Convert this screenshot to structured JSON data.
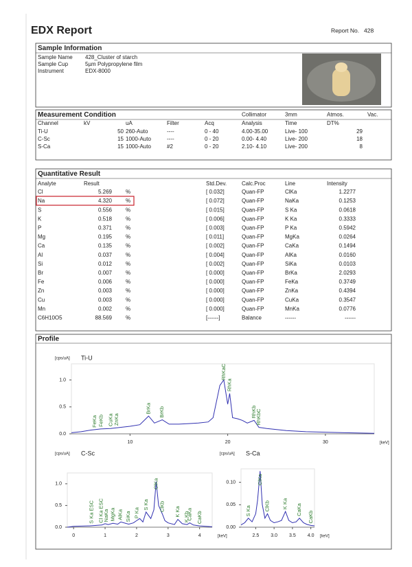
{
  "header": {
    "title": "EDX Report",
    "report_no_label": "Report No.",
    "report_no": "428"
  },
  "sample_information": {
    "title": "Sample Information",
    "rows": [
      [
        "Sample Name",
        "428_Cluster of starch"
      ],
      [
        "Sample Cup",
        "5µm Polypropylene film"
      ],
      [
        "Instrument",
        "EDX-8000"
      ]
    ]
  },
  "measurement_condition": {
    "title": "Measurement Condition",
    "collimator": [
      "Collimator",
      "3mm"
    ],
    "atmosphere": [
      "Atmos.",
      "Vac."
    ],
    "columns": [
      "Channel",
      "kV",
      "uA",
      "Filter",
      "Acq",
      "Analysis",
      "Time",
      "DT%"
    ],
    "rows": [
      [
        "Ti-U",
        "50",
        "260-Auto",
        "----",
        "0 - 40",
        "4.00-35.00",
        "Live- 100",
        "29"
      ],
      [
        "C-Sc",
        "15",
        "1000-Auto",
        "----",
        "0 - 20",
        "0.00- 4.40",
        "Live- 200",
        "18"
      ],
      [
        "S-Ca",
        "15",
        "1000-Auto",
        "#2",
        "0 - 20",
        "2.10- 4.10",
        "Live- 200",
        "8"
      ]
    ]
  },
  "quantitative_result": {
    "title": "Quantitative Result",
    "columns": [
      "Analyte",
      "Result",
      "Std.Dev.",
      "Calc.Proc",
      "Line",
      "Intensity"
    ],
    "rows": [
      [
        "Cl",
        "5.269",
        "%",
        "[ 0.032]",
        "Quan-FP",
        "ClKa",
        "1.2277"
      ],
      [
        "Na",
        "4.320",
        "%",
        "[ 0.072]",
        "Quan-FP",
        "NaKa",
        "0.1253"
      ],
      [
        "S",
        "0.556",
        "%",
        "[ 0.015]",
        "Quan-FP",
        "S Ka",
        "0.0618"
      ],
      [
        "K",
        "0.518",
        "%",
        "[ 0.006]",
        "Quan-FP",
        "K Ka",
        "0.3333"
      ],
      [
        "P",
        "0.371",
        "%",
        "[ 0.003]",
        "Quan-FP",
        "P Ka",
        "0.5942"
      ],
      [
        "Mg",
        "0.195",
        "%",
        "[ 0.011]",
        "Quan-FP",
        "MgKa",
        "0.0264"
      ],
      [
        "Ca",
        "0.135",
        "%",
        "[ 0.002]",
        "Quan-FP",
        "CaKa",
        "0.1494"
      ],
      [
        "Al",
        "0.037",
        "%",
        "[ 0.004]",
        "Quan-FP",
        "AlKa",
        "0.0160"
      ],
      [
        "Si",
        "0.012",
        "%",
        "[ 0.002]",
        "Quan-FP",
        "SiKa",
        "0.0103"
      ],
      [
        "Br",
        "0.007",
        "%",
        "[ 0.000]",
        "Quan-FP",
        "BrKa",
        "2.0293"
      ],
      [
        "Fe",
        "0.006",
        "%",
        "[ 0.000]",
        "Quan-FP",
        "FeKa",
        "0.3749"
      ],
      [
        "Zn",
        "0.003",
        "%",
        "[ 0.000]",
        "Quan-FP",
        "ZnKa",
        "0.4394"
      ],
      [
        "Cu",
        "0.003",
        "%",
        "[ 0.000]",
        "Quan-FP",
        "CuKa",
        "0.3547"
      ],
      [
        "Mn",
        "0.002",
        "%",
        "[ 0.000]",
        "Quan-FP",
        "MnKa",
        "0.0776"
      ],
      [
        "C6H10O5",
        "88.569",
        "%",
        "[------]",
        "Balance",
        "------",
        "------"
      ]
    ]
  },
  "profile": {
    "title": "Profile",
    "charts": [
      {
        "type": "line",
        "title": "Ti-U",
        "y_unit": "[cps/uA]",
        "x_unit": "[keV]",
        "color": "#2f2fb0",
        "xlim": [
          4,
          35
        ],
        "ylim": [
          0,
          1.3
        ],
        "xticks": [
          10,
          20,
          30
        ],
        "yticks": [
          {
            "value": 0,
            "label": "0.0"
          },
          0.5,
          {
            "value": 1,
            "label": "1.0"
          }
        ],
        "x": [
          4,
          5,
          6,
          7,
          8,
          9,
          10,
          11,
          11.9,
          12.5,
          13.3,
          14,
          15,
          16,
          17,
          18,
          18.5,
          19.2,
          19.6,
          20.0,
          20.2,
          20.5,
          21,
          21.5,
          22.0,
          22.7,
          23.2,
          24,
          26,
          28,
          30,
          32,
          35
        ],
        "values": [
          0.02,
          0.04,
          0.07,
          0.09,
          0.1,
          0.12,
          0.14,
          0.17,
          0.33,
          0.2,
          0.26,
          0.18,
          0.18,
          0.19,
          0.2,
          0.22,
          0.3,
          0.9,
          1.0,
          0.55,
          0.75,
          0.3,
          0.28,
          0.25,
          0.2,
          0.25,
          0.12,
          0.1,
          0.06,
          0.04,
          0.03,
          0.02,
          0.01
        ],
        "peak_labels": [
          {
            "label": "FeKa",
            "x": 6.4
          },
          {
            "label": "FeKb",
            "x": 7.06
          },
          {
            "label": "CuKa",
            "x": 8.04
          },
          {
            "label": "ZnKa",
            "x": 8.63
          },
          {
            "label": "BrKa",
            "x": 11.92
          },
          {
            "label": "BrKb",
            "x": 13.29
          },
          {
            "label": "RhKaC",
            "x": 19.6
          },
          {
            "label": "RhKa",
            "x": 20.2
          },
          {
            "label": "RhKb",
            "x": 22.7
          },
          {
            "label": "RhKbC",
            "x": 23.2
          }
        ]
      },
      {
        "type": "line",
        "title": "C-Sc",
        "y_unit": "[cps/uA]",
        "x_unit": "[keV]",
        "color": "#2f2fb0",
        "xlim": [
          -0.2,
          4.4
        ],
        "ylim": [
          0,
          1.25
        ],
        "xticks": [
          0,
          1,
          2,
          3,
          4
        ],
        "yticks": [
          {
            "value": 0,
            "label": "0.0"
          },
          0.5,
          {
            "value": 1,
            "label": "1.0"
          }
        ],
        "x": [
          -0.2,
          0,
          0.5,
          0.9,
          1.0,
          1.1,
          1.25,
          1.4,
          1.5,
          1.75,
          1.9,
          2.0,
          2.1,
          2.2,
          2.3,
          2.45,
          2.55,
          2.62,
          2.7,
          2.82,
          2.9,
          3.0,
          3.2,
          3.31,
          3.45,
          3.6,
          3.69,
          3.8,
          4.0,
          4.2,
          4.4
        ],
        "values": [
          0,
          0.02,
          0.03,
          0.05,
          0.08,
          0.06,
          0.09,
          0.07,
          0.12,
          0.07,
          0.1,
          0.15,
          0.2,
          0.12,
          0.35,
          0.2,
          0.4,
          1.05,
          0.5,
          0.3,
          0.15,
          0.1,
          0.06,
          0.18,
          0.08,
          0.06,
          0.1,
          0.05,
          0.03,
          0.02,
          0.01
        ],
        "peak_labels": [
          {
            "label": "S Ka ESC",
            "x": 0.57
          },
          {
            "label": "Cl Ka ESC",
            "x": 0.88
          },
          {
            "label": "NaKa",
            "x": 1.04
          },
          {
            "label": "MgKa",
            "x": 1.25
          },
          {
            "label": "AlKa",
            "x": 1.49
          },
          {
            "label": "SiKa",
            "x": 1.74
          },
          {
            "label": "P Ka",
            "x": 2.01
          },
          {
            "label": "S Ka",
            "x": 2.31
          },
          {
            "label": "ClKa",
            "x": 2.62
          },
          {
            "label": "ClKb",
            "x": 2.82
          },
          {
            "label": "K Ka",
            "x": 3.31
          },
          {
            "label": "K Kb",
            "x": 3.59
          },
          {
            "label": "CaKa",
            "x": 3.69
          },
          {
            "label": "CaKb",
            "x": 4.01
          }
        ]
      },
      {
        "type": "line",
        "title": "S-Ca",
        "y_unit": "[cps/uA]",
        "x_unit": "[keV]",
        "color": "#2f2fb0",
        "xlim": [
          2.1,
          4.1
        ],
        "ylim": [
          0,
          0.13
        ],
        "xticks": [
          2.5,
          {
            "value": 3,
            "label": "3.0"
          },
          3.5,
          {
            "value": 4,
            "label": "4.0"
          }
        ],
        "yticks": [
          {
            "value": 0,
            "label": "0.00"
          },
          0.05,
          {
            "value": 0.1,
            "label": "0.10"
          }
        ],
        "x": [
          2.1,
          2.2,
          2.3,
          2.4,
          2.5,
          2.55,
          2.62,
          2.68,
          2.75,
          2.82,
          2.9,
          3.0,
          3.1,
          3.2,
          3.31,
          3.4,
          3.5,
          3.6,
          3.69,
          3.8,
          3.9,
          4.0,
          4.1
        ],
        "values": [
          0.005,
          0.01,
          0.02,
          0.012,
          0.03,
          0.06,
          0.125,
          0.05,
          0.02,
          0.03,
          0.015,
          0.01,
          0.012,
          0.015,
          0.035,
          0.015,
          0.01,
          0.012,
          0.02,
          0.01,
          0.006,
          0.004,
          0.003
        ],
        "peak_labels": [
          {
            "label": "S Ka",
            "x": 2.31
          },
          {
            "label": "ClKa",
            "x": 2.62
          },
          {
            "label": "ClKb",
            "x": 2.82
          },
          {
            "label": "K Ka",
            "x": 3.31
          },
          {
            "label": "CaKa",
            "x": 3.69
          },
          {
            "label": "CaKb",
            "x": 4.01
          }
        ]
      }
    ]
  }
}
